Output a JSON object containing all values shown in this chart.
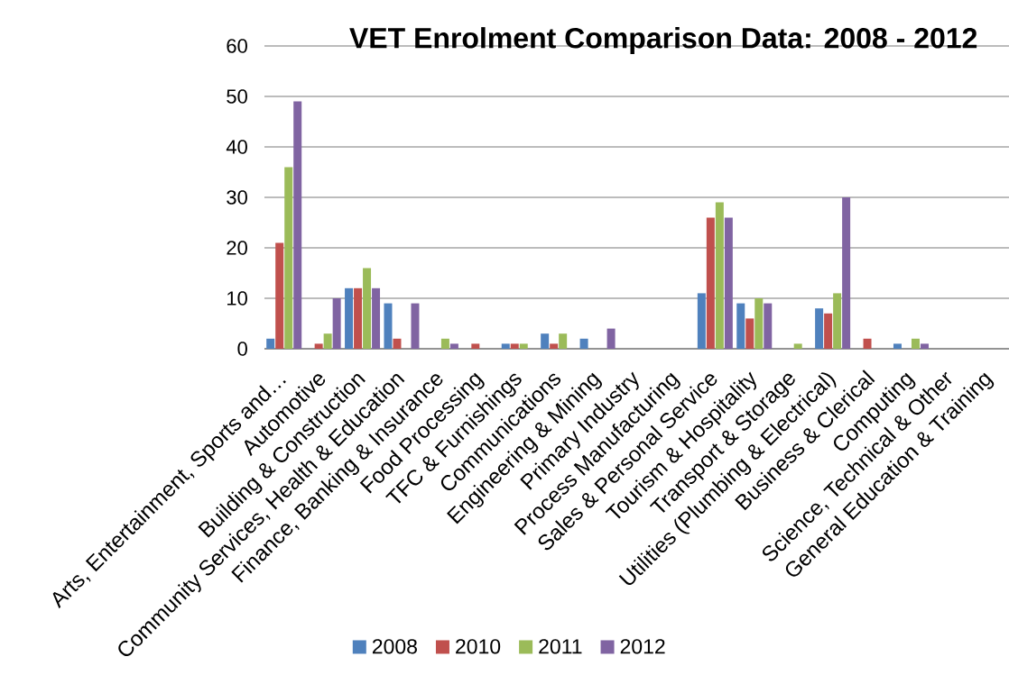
{
  "chart_data": {
    "type": "bar",
    "title": "VET Enrolment Comparison Data: 2008 - 2012",
    "categories": [
      "Arts, Entertainment, Sports and…",
      "Automotive",
      "Building & Construction",
      "Community Services, Health & Education",
      "Finance, Banking & Insurance",
      "Food Processing",
      "TFC & Furnishings",
      "Communications",
      "Engineering & Mining",
      "Primary Industry",
      "Process Manufacturing",
      "Sales & Personal Service",
      "Tourism & Hospitality",
      "Transport & Storage",
      "Utilities (Plumbing & Electrical)",
      "Business & Clerical",
      "Computing",
      "Science, Technical & Other",
      "General Education & Training"
    ],
    "series": [
      {
        "name": "2008",
        "color": "#4f81bd",
        "values": [
          2,
          0,
          12,
          9,
          0,
          0,
          1,
          3,
          2,
          0,
          0,
          11,
          9,
          0,
          8,
          0,
          1,
          0,
          0
        ]
      },
      {
        "name": "2010",
        "color": "#c0504d",
        "values": [
          21,
          1,
          12,
          2,
          0,
          1,
          1,
          1,
          0,
          0,
          0,
          26,
          6,
          0,
          7,
          2,
          0,
          0,
          0
        ]
      },
      {
        "name": "2011",
        "color": "#9bbb59",
        "values": [
          36,
          3,
          16,
          0,
          2,
          0,
          1,
          3,
          0,
          0,
          0,
          29,
          10,
          1,
          11,
          0,
          2,
          0,
          0
        ]
      },
      {
        "name": "2012",
        "color": "#8064a2",
        "values": [
          49,
          10,
          12,
          9,
          1,
          0,
          0,
          0,
          4,
          0,
          0,
          26,
          9,
          0,
          30,
          0,
          1,
          0,
          0
        ]
      }
    ],
    "ylim": [
      0,
      60
    ],
    "yticks": [
      0,
      10,
      20,
      30,
      40,
      50,
      60
    ],
    "grid": "y",
    "legend": "bottom"
  }
}
